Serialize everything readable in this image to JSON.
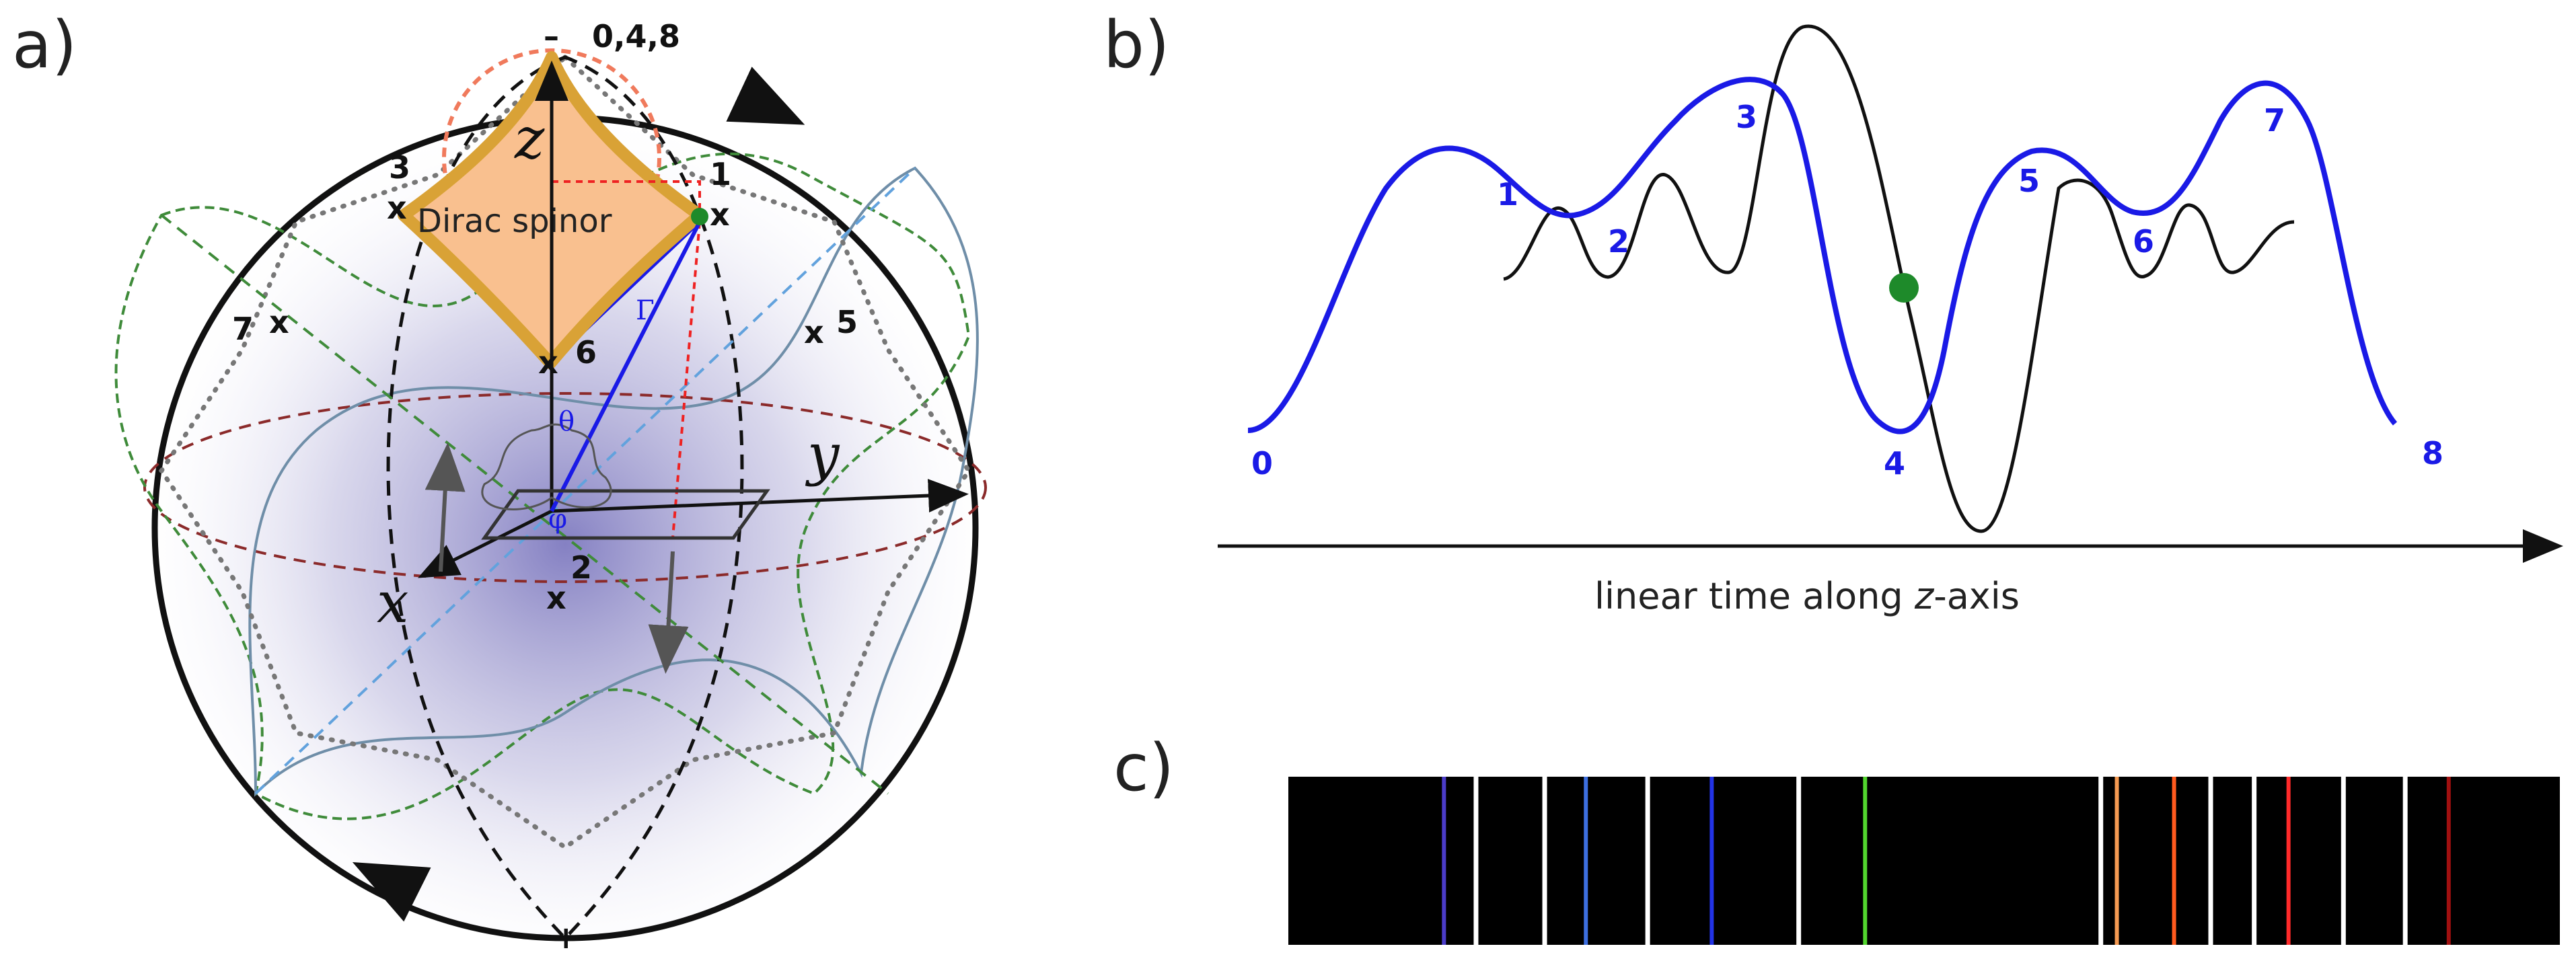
{
  "panels": {
    "a": {
      "label": "a)",
      "pole_top": "–",
      "pole_top_indices": "0,4,8",
      "pole_bottom": "+",
      "axis_z": "z",
      "axis_y": "y",
      "axis_x": "x",
      "spinor_label": "Dirac spinor",
      "theta": "θ",
      "phi": "φ",
      "gamma": "Γ",
      "points": [
        "1",
        "2",
        "3",
        "5",
        "6",
        "7"
      ],
      "colors": {
        "orange_fill": "#f9c08f",
        "gold_edge": "#d9a236",
        "cyan_fill": "#33d6e6",
        "sphere_tint": "#8c86c9"
      }
    },
    "b": {
      "label": "b)",
      "peak_labels": [
        "0",
        "1",
        "2",
        "3",
        "4",
        "5",
        "6",
        "7",
        "8"
      ],
      "caption_prefix": "linear time along ",
      "caption_axis": "z",
      "caption_suffix": "-axis",
      "colors": {
        "blue_curve": "#1a1ae6",
        "black_curve": "#111111",
        "marker": "#1e8a2a"
      }
    },
    "c": {
      "label": "c)",
      "spectrum_lines": [
        {
          "pos": 0.068,
          "color": "#4b3cc9"
        },
        {
          "pos": 0.082,
          "color": "#ffffff"
        },
        {
          "pos": 0.112,
          "color": "#ffffff"
        },
        {
          "pos": 0.13,
          "color": "#3d6fe0"
        },
        {
          "pos": 0.157,
          "color": "#ffffff"
        },
        {
          "pos": 0.185,
          "color": "#2233e6"
        },
        {
          "pos": 0.223,
          "color": "#ffffff"
        },
        {
          "pos": 0.252,
          "color": "#52d62e"
        },
        {
          "pos": 0.355,
          "color": "#ffffff"
        },
        {
          "pos": 0.362,
          "color": "#f59a52"
        },
        {
          "pos": 0.387,
          "color": "#ff5a1e"
        },
        {
          "pos": 0.403,
          "color": "#ffffff"
        },
        {
          "pos": 0.422,
          "color": "#ffffff"
        },
        {
          "pos": 0.437,
          "color": "#ff2a2a"
        },
        {
          "pos": 0.461,
          "color": "#ffffff"
        },
        {
          "pos": 0.488,
          "color": "#ffffff"
        },
        {
          "pos": 0.507,
          "color": "#a01010"
        }
      ]
    }
  }
}
